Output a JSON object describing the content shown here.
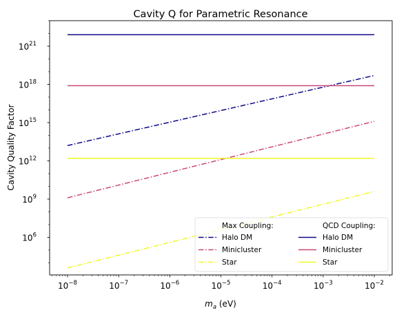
{
  "chart_data": {
    "type": "line",
    "title": "Cavity Q for Parametric Resonance",
    "xlabel_main": "m",
    "xlabel_sub": "a",
    "xlabel_unit": " (eV)",
    "ylabel": "Cavity Quality Factor",
    "xscale": "log",
    "yscale": "log",
    "xlim_exp": [
      -8.35,
      -1.65
    ],
    "ylim_exp": [
      3.05,
      23.0
    ],
    "grid": false,
    "legend_position": "lower-right",
    "x_ticks": [
      {
        "base": "10",
        "exp": "−8",
        "value": -8
      },
      {
        "base": "10",
        "exp": "−7",
        "value": -7
      },
      {
        "base": "10",
        "exp": "−6",
        "value": -6
      },
      {
        "base": "10",
        "exp": "−5",
        "value": -5
      },
      {
        "base": "10",
        "exp": "−4",
        "value": -4
      },
      {
        "base": "10",
        "exp": "−3",
        "value": -3
      },
      {
        "base": "10",
        "exp": "−2",
        "value": -2
      }
    ],
    "y_ticks": [
      {
        "base": "10",
        "exp": "6",
        "value": 6
      },
      {
        "base": "10",
        "exp": "9",
        "value": 9
      },
      {
        "base": "10",
        "exp": "12",
        "value": 12
      },
      {
        "base": "10",
        "exp": "15",
        "value": 15
      },
      {
        "base": "10",
        "exp": "18",
        "value": 18
      },
      {
        "base": "10",
        "exp": "21",
        "value": 21
      }
    ],
    "legend": {
      "max_header": "Max Coupling:",
      "qcd_header": "QCD Coupling:"
    },
    "series": [
      {
        "name": "Halo DM",
        "group": "Max Coupling",
        "style": "dashdot",
        "color": "#0d0887",
        "log10_x": [
          -8,
          -2
        ],
        "log10_y": [
          13.2,
          18.7
        ]
      },
      {
        "name": "Minicluster",
        "group": "Max Coupling",
        "style": "dashdot",
        "color": "#cc4778",
        "log10_x": [
          -8,
          -2
        ],
        "log10_y": [
          9.1,
          15.1
        ]
      },
      {
        "name": "Star",
        "group": "Max Coupling",
        "style": "dashdot",
        "color": "#f0f921",
        "log10_x": [
          -8,
          -2
        ],
        "log10_y": [
          3.6,
          9.6
        ]
      },
      {
        "name": "Halo DM",
        "group": "QCD Coupling",
        "style": "solid",
        "color": "#0d0887",
        "log10_x": [
          -8,
          -2
        ],
        "log10_y": [
          21.9,
          21.9
        ]
      },
      {
        "name": "Minicluster",
        "group": "QCD Coupling",
        "style": "solid",
        "color": "#cc4778",
        "log10_x": [
          -8,
          -2
        ],
        "log10_y": [
          17.9,
          17.9
        ]
      },
      {
        "name": "Star",
        "group": "QCD Coupling",
        "style": "solid",
        "color": "#f0f921",
        "log10_x": [
          -8,
          -2
        ],
        "log10_y": [
          12.2,
          12.2
        ]
      }
    ]
  }
}
